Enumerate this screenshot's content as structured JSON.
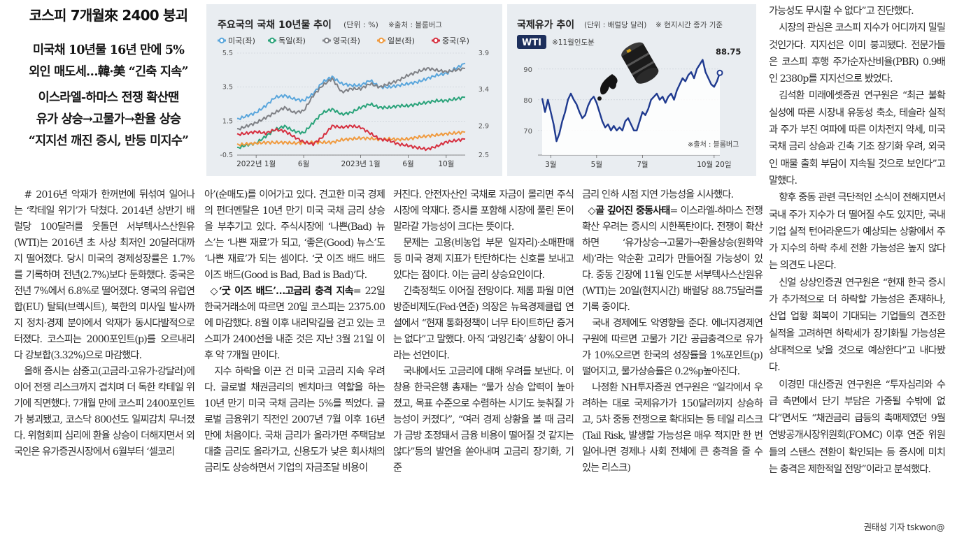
{
  "headlines": {
    "main": "코스피 7개월來 2400 붕괴",
    "sub1": [
      "미국채 10년물 16년 만에 5%",
      "외인 매도세…韓·美 “긴축 지속”"
    ],
    "sub2": [
      "이스라엘-하마스 전쟁 확산땐",
      "유가 상승→고물가→환율 상승",
      "“지지선 깨진 증시, 반등 미지수”"
    ]
  },
  "colors": {
    "us": "#5aa6dc",
    "germany": "#2aa37a",
    "uk": "#7f8186",
    "japan": "#f09a3e",
    "china": "#d63040",
    "oil": "#1f3a8f",
    "panel": "#e9edf1"
  },
  "chart_data": [
    {
      "type": "line",
      "title": "주요국의 국채 10년물 추이",
      "unit_note": "(단위 : %)",
      "source": "※출처 : 블룸버그",
      "x_ticks": [
        "2022년 1월",
        "6월",
        "2023년 1월",
        "6월",
        "10월"
      ],
      "left_axis": {
        "ticks": [
          "5.5",
          "3.5",
          "1.5",
          "-0.5"
        ],
        "range": [
          -0.5,
          5.5
        ]
      },
      "right_axis": {
        "ticks": [
          "3.9",
          "3.4",
          "2.9",
          "2.5"
        ],
        "range": [
          2.5,
          3.9
        ]
      },
      "series": [
        {
          "name": "미국(좌)",
          "color": "#5aa6dc",
          "axis": "left",
          "values": [
            1.6,
            1.8,
            2.0,
            2.4,
            2.9,
            3.0,
            2.8,
            2.7,
            3.1,
            3.8,
            4.1,
            3.7,
            3.6,
            3.6,
            3.9,
            3.5,
            3.5,
            3.6,
            3.7,
            3.8,
            4.0,
            4.2,
            4.3,
            4.6,
            4.9
          ]
        },
        {
          "name": "독일(좌)",
          "color": "#2aa37a",
          "axis": "left",
          "values": [
            -0.1,
            0.1,
            0.2,
            0.6,
            1.0,
            1.2,
            0.9,
            0.8,
            1.4,
            2.0,
            2.2,
            1.9,
            2.0,
            2.3,
            2.5,
            2.3,
            2.3,
            2.4,
            2.4,
            2.5,
            2.6,
            2.7,
            2.7,
            2.8,
            2.9
          ]
        },
        {
          "name": "영국(좌)",
          "color": "#7f8186",
          "axis": "left",
          "values": [
            1.0,
            1.2,
            1.4,
            1.7,
            2.0,
            2.3,
            2.0,
            2.1,
            3.0,
            3.6,
            4.0,
            3.2,
            3.4,
            3.4,
            3.7,
            3.5,
            3.7,
            3.9,
            4.2,
            4.4,
            4.6,
            4.5,
            4.4,
            4.5,
            4.6
          ]
        },
        {
          "name": "일본(좌)",
          "color": "#f09a3e",
          "axis": "left",
          "values": [
            0.1,
            0.15,
            0.2,
            0.24,
            0.24,
            0.24,
            0.2,
            0.22,
            0.25,
            0.25,
            0.25,
            0.4,
            0.45,
            0.5,
            0.48,
            0.42,
            0.45,
            0.42,
            0.45,
            0.55,
            0.62,
            0.68,
            0.75,
            0.8,
            0.85
          ]
        },
        {
          "name": "중국(우)",
          "color": "#d63040",
          "axis": "right",
          "values": [
            2.78,
            2.8,
            2.82,
            2.8,
            2.85,
            2.83,
            2.75,
            2.68,
            2.65,
            2.75,
            2.9,
            2.88,
            2.9,
            2.88,
            2.8,
            2.72,
            2.7,
            2.65,
            2.63,
            2.6,
            2.58,
            2.62,
            2.68,
            2.7,
            2.72
          ]
        }
      ]
    },
    {
      "type": "area",
      "title": "국제유가 추이",
      "unit_note": "(단위 : 배럴당 달러)",
      "note": "※ 현지시간 종가 기준",
      "badge": "WTI",
      "badge_note": "※11월인도분",
      "source": "※출처 : 블룸버그",
      "x_ticks": [
        "3월",
        "5월",
        "7월",
        "10월 20일"
      ],
      "y_ticks": [
        "90",
        "80",
        "70"
      ],
      "ylim": [
        62,
        97
      ],
      "last_value": "88.75",
      "values": [
        80.5,
        76,
        80,
        76,
        72,
        66.5,
        69,
        73,
        76,
        80,
        82,
        80,
        78.5,
        76,
        74,
        75,
        78,
        80,
        81,
        79,
        76,
        73,
        71,
        72,
        70,
        71.5,
        70,
        71,
        70,
        73,
        74,
        72,
        70,
        70,
        73,
        76,
        75,
        77,
        80,
        81,
        82,
        80,
        81,
        79,
        81,
        82,
        80,
        83,
        85,
        87,
        86,
        88,
        89,
        87,
        90,
        91.5,
        93,
        89,
        87,
        85,
        84.2,
        86,
        88.75
      ]
    }
  ],
  "columns": [
    [
      "# 2016년 악재가 한꺼번에 뒤섞여 일어나는 ‘칵테일 위기’가 닥쳤다. 2014년 상반기 배럴당 100달러를 웃돌던 서부텍사스산원유(WTI)는 2016년 초 사상 최저인 20달러대까지 떨어졌다. 당시 미국의 경제성장률은 1.7%를 기록하며 전년(2.7%)보다 둔화했다. 중국은 전년 7%에서 6.8%로 떨어졌다. 영국의 유럽연합(EU) 탈퇴(브렉시트), 북한의 미사일 발사까지 정치·경제 분야에서 악재가 동시다발적으로 터졌다. 코스피는 2000포인트(p)를 오르내리다 강보합(3.32%)으로 마감했다.",
      "올해 증시는 삼중고(고금리·고유가·강달러)에 이어 전쟁 리스크까지 겹치며 더 독한 칵테일 위기에 직면했다. 7개월 만에 코스피 2400포인트가 붕괴됐고, 코스닥 800선도 일찌감치 무너졌다. 위험회피 심리에 환율 상승이 더해지면서 외국인은 유가증권시장에서 6월부터 ‘셀코리"
    ],
    [
      "아’(순매도)를 이어가고 있다. 견고한 미국 경제의 펀더멘탈은 10년 만기 미국 국채 금리 상승을 부추기고 있다. 주식시장에 ‘나쁜(Bad) 뉴스’는 ‘나쁜 재료’가 되고, ‘좋은(Good) 뉴스’도 ‘나쁜 재료’가 되는 셈이다. ‘굿 이즈 배드 배드 이즈 배드(Good is Bad, Bad is Bad)’다.",
      {
        "head": "◇‘굿 이즈 배드’…고금리 충격 지속",
        "text": "= 22일 한국거래소에 따르면 20일 코스피는 2375.00에 마감했다. 8월 이후 내리막길을 걷고 있는 코스피가 2400선을 내준 것은 지난 3월 21일 이후 약 7개월 만이다."
      },
      "지수 하락을 이끈 건 미국 고금리 지속 우려다. 글로벌 채권금리의 벤치마크 역할을 하는 10년 만기 미국 국채 금리는 5%를 찍었다. 글로벌 금융위기 직전인 2007년 7월 이후 16년 만에 처음이다. 국채 금리가 올라가면 주택담보대출 금리도 올라가고, 신용도가 낮은 회사채의 금리도 상승하면서 기업의 자금조달 비용이"
    ],
    [
      "커진다. 안전자산인 국채로 자금이 몰리면 주식시장에 악재다. 증시를 포함해 시장에 풀린 돈이 말라갈 가능성이 크다는 뜻이다.",
      "문제는 고용(비농업 부문 일자리)·소매판매 등 미국 경제 지표가 탄탄하다는 신호를 보내고 있다는 점이다. 이는 금리 상승요인이다.",
      "긴축정책도 이어질 전망이다. 제롬 파월 미연방준비제도(Fed·연준) 의장은 뉴욕경제클럽 연설에서 “현재 통화정책이 너무 타이트하단 증거는 없다”고 말했다. 아직 ‘과잉긴축’ 상황이 아니라는 선언이다.",
      "국내에서도 고금리에 대해 우려를 보낸다. 이창용 한국은행 총재는 “물가 상승 압력이 높아졌고, 목표 수준으로 수렴하는 시기도 늦춰질 가능성이 커졌다”, “여러 경제 상황을 볼 때 금리가 금방 조정돼서 금융 비용이 떨어질 것 같지는 않다”등의 발언을 쏟아내며 고금리 장기화, 기준"
    ],
    [
      "금리 인하 시점 지연 가능성을 시사했다.",
      {
        "head": "◇골 깊어진 중동사태",
        "text": "= 이스라엘-하마스 전쟁 확산 우려는 증시의 시한폭탄이다. 전쟁이 확산하면 ‘유가상승→고물가→환율상승(원화약세)’라는 악순환 고리가 만들어질 가능성이 있다. 중동 긴장에 11월 인도분 서부텍사스산원유(WTI)는 20일(현지시간) 배럴당 88.75달러를 기록 중이다."
      },
      "국내 경제에도 악영향을 준다. 에너지경제연구원에 따르면 고물가 기간 공급충격으로 유가가 10%오르면 한국의 성장률을 1%포인트(p)떨어지고, 물가상승률은 0.2%p높아진다.",
      "나정환 NH투자증권 연구원은 “일각에서 우려하는 대로 국제유가가 150달러까지 상승하고, 5차 중동 전쟁으로 확대되는 등 테일 리스크(Tail Risk, 발생할 가능성은 매우 적지만 한 번 일어나면 경제나 사회 전체에 큰 충격을 줄 수 있는 리스크)"
    ],
    [
      "가능성도 무시할 수 없다”고 진단했다.",
      "시장의 관심은 코스피 지수가 어디까지 밀릴 것인가다. 지지선은 이미 붕괴됐다. 전문가들은 코스피 후행 주가순자산비율(PBR) 0.9배인 2380p를 지지선으로 봤었다.",
      "김석환 미래에셋증권 연구원은 “최근 불확실성에 따른 시장내 유동성 축소, 테슬라 실적과 주가 부진 여파에 따른 이차전지 약세, 미국 국채 금리 상승과 긴축 기조 장기화 우려, 외국인 매물 출회 부담이 지속될 것으로 보인다”고 말했다.",
      "향후 중동 관련 극단적인 소식이 전해지면서 국내 주가 지수가 더 떨어질 수도 있지만, 국내 기업 실적 턴어라운드가 예상되는 상황에서 주가 지수의 하락 추세 전환 가능성은 높지 않다는 의견도 나온다.",
      "신얼 상상인증권 연구원은 “현재 한국 증시가 추가적으로 더 하락할 가능성은 존재하나, 산업 업황 회복이 기대되는 기업들의 견조한 실적을 고려하면 하락세가 장기화될 가능성은 상대적으로 낮을 것으로 예상한다”고 내다봤다.",
      "이경민 대신증권 연구원은 “투자심리와 수급 측면에서 단기 부담은 가중될 수밖에 없다”면서도 “채권금리 급등의 촉매제였던 9월 연방공개시장위원회(FOMC) 이후 연준 위원들의 스탠스 전환이 확인되는 등 증시에 미치는 충격은 제한적일 전망”이라고 분석했다."
    ]
  ],
  "byline": "권태성 기자 tskwon@"
}
